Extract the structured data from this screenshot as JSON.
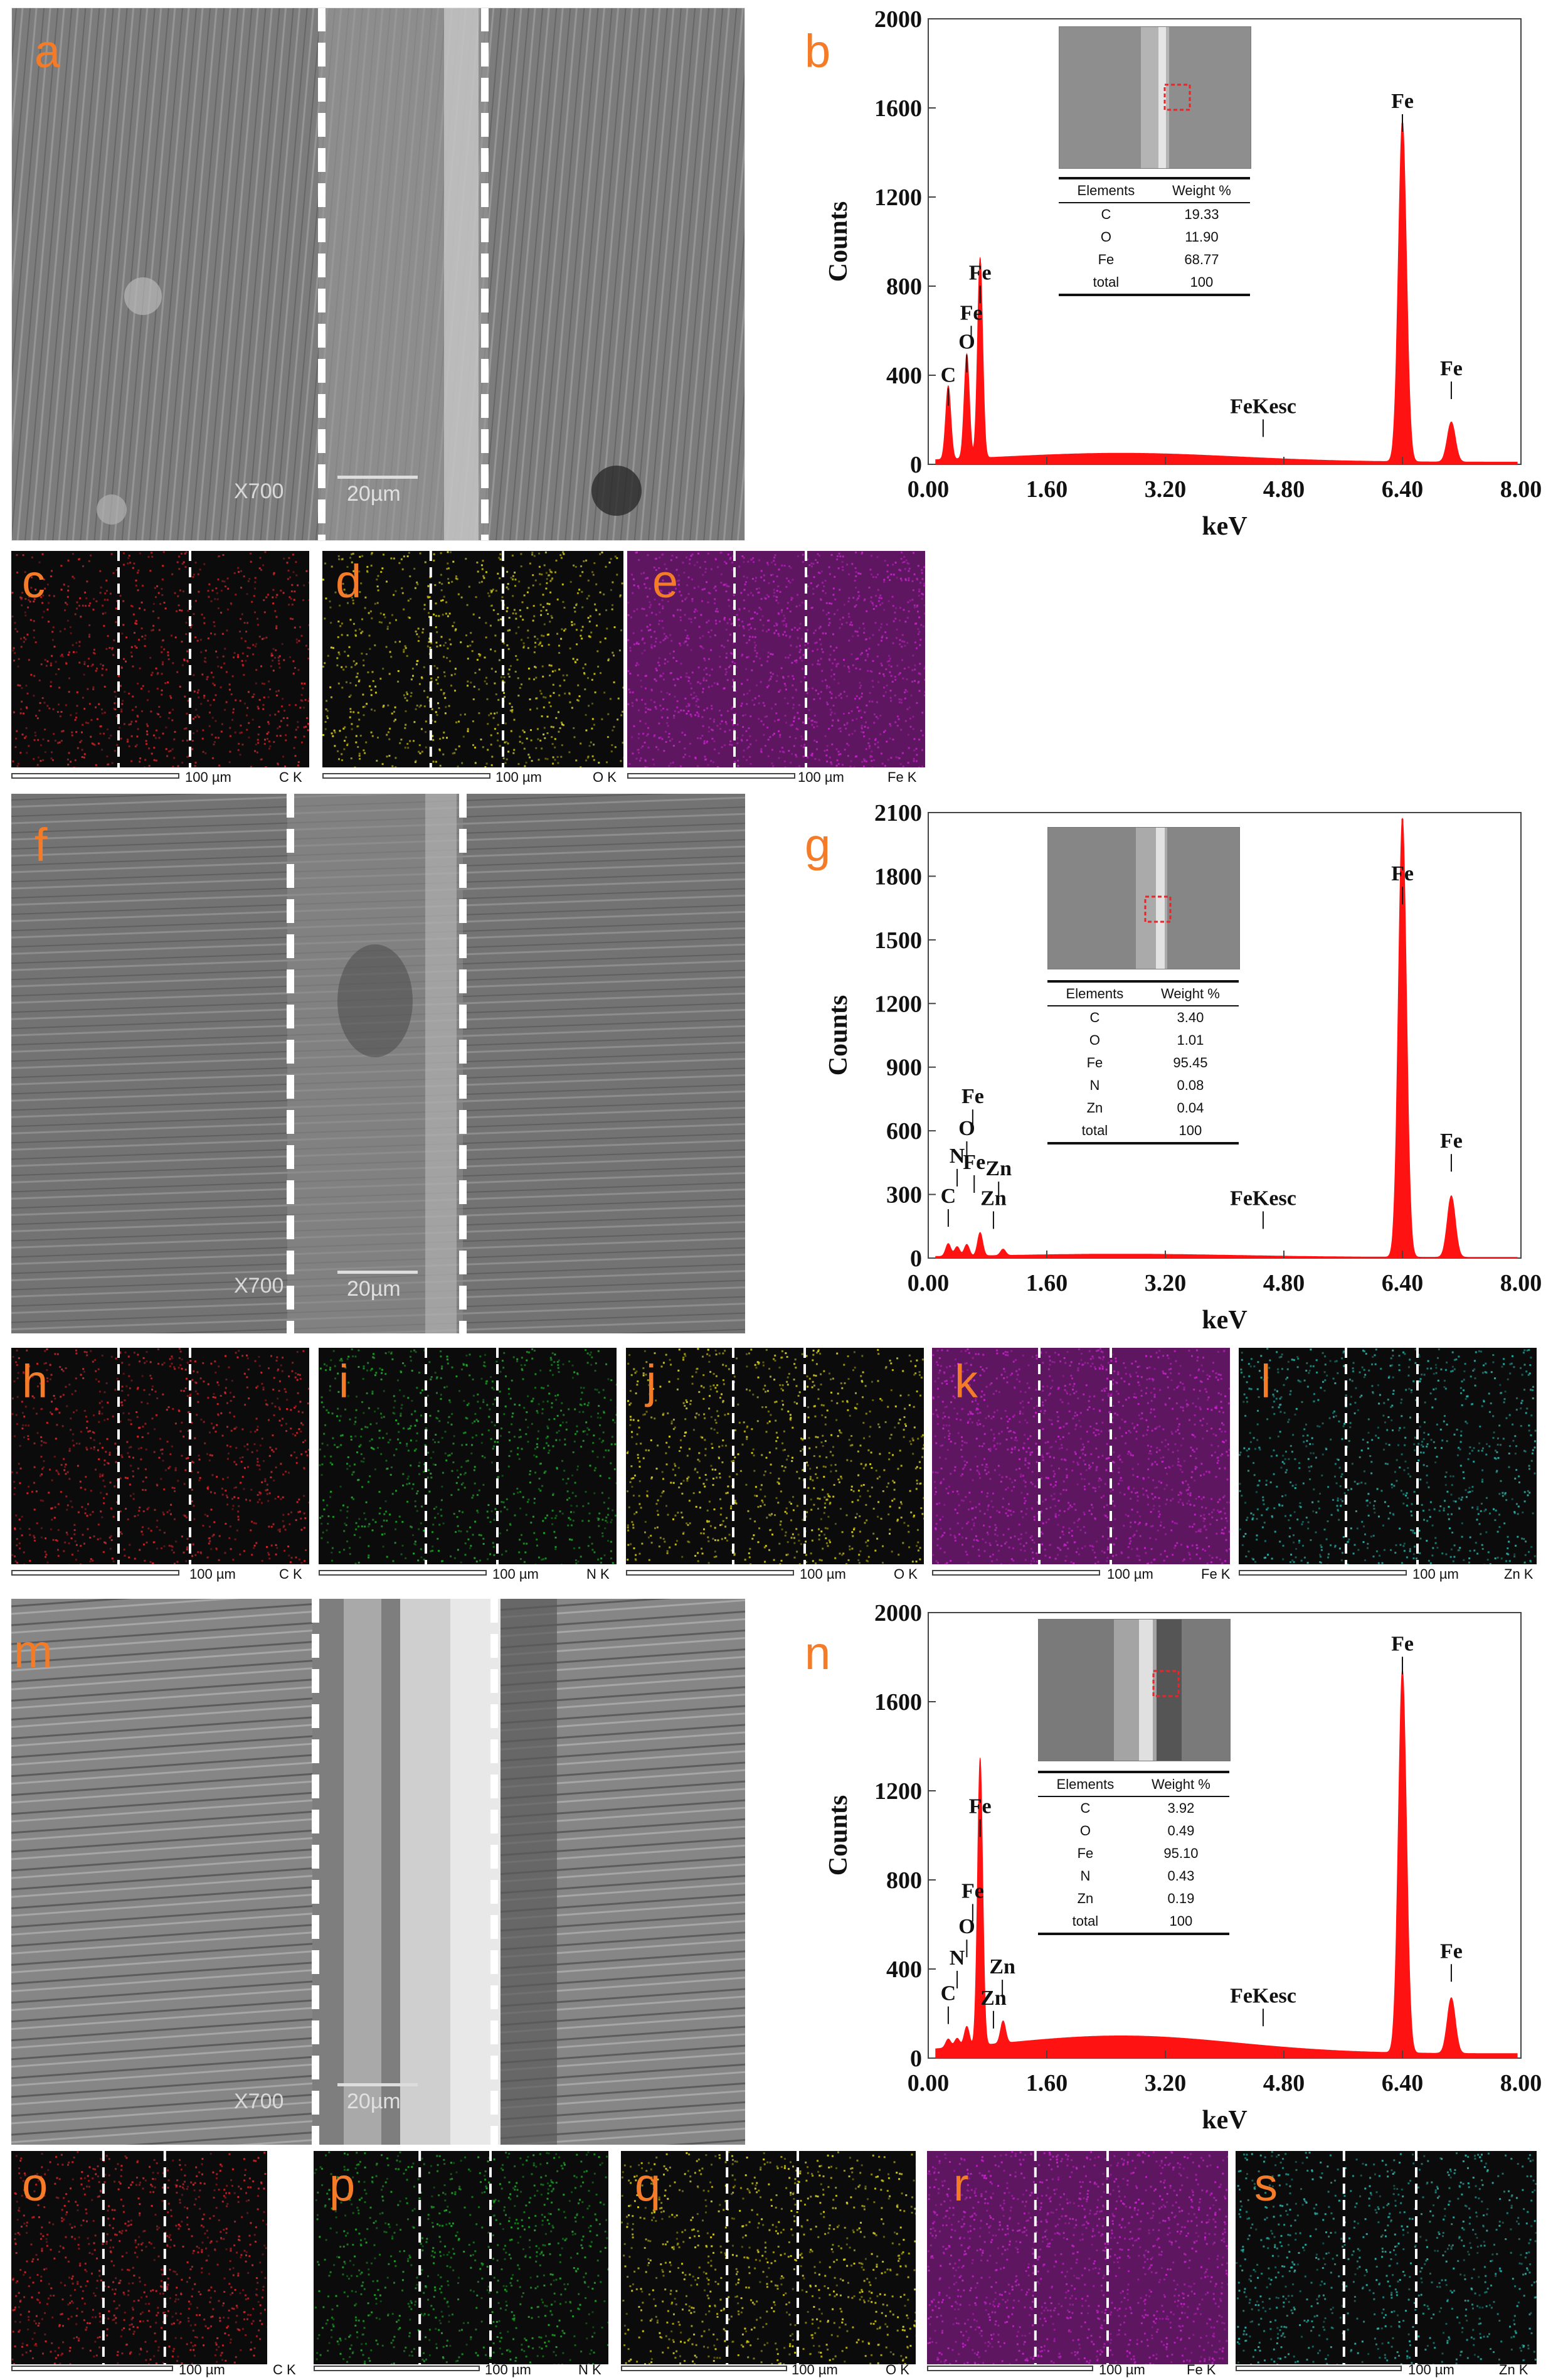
{
  "panels": {
    "a": "a",
    "b": "b",
    "c": "c",
    "d": "d",
    "e": "e",
    "f": "f",
    "g": "g",
    "h": "h",
    "i": "i",
    "j": "j",
    "k": "k",
    "l": "l",
    "m": "m",
    "n": "n",
    "o": "o",
    "p": "p",
    "q": "q",
    "r": "r",
    "s": "s"
  },
  "sem_labels": {
    "magnification": "X700",
    "scale": "20µm"
  },
  "map_scale": "100 µm",
  "maps": {
    "c": {
      "element": "C K",
      "color": "#d7262d"
    },
    "d": {
      "element": "O K",
      "color": "#d9d21c"
    },
    "e": {
      "element": "Fe K",
      "color": "#c424c8"
    },
    "h": {
      "element": "C K",
      "color": "#d7262d"
    },
    "i": {
      "element": "N K",
      "color": "#1fa82a"
    },
    "j": {
      "element": "O K",
      "color": "#d9d21c"
    },
    "k": {
      "element": "Fe K",
      "color": "#c424c8"
    },
    "l": {
      "element": "Zn K",
      "color": "#2bb3a8"
    },
    "o": {
      "element": "C K",
      "color": "#d7262d"
    },
    "p": {
      "element": "N K",
      "color": "#1fa82a"
    },
    "q": {
      "element": "O K",
      "color": "#d9d21c"
    },
    "r": {
      "element": "Fe K",
      "color": "#c424c8"
    },
    "s": {
      "element": "Zn K",
      "color": "#2bb3a8"
    }
  },
  "tables": {
    "b": {
      "headers": [
        "Elements",
        "Weight %"
      ],
      "rows": [
        [
          "C",
          "19.33"
        ],
        [
          "O",
          "11.90"
        ],
        [
          "Fe",
          "68.77"
        ],
        [
          "total",
          "100"
        ]
      ]
    },
    "g": {
      "headers": [
        "Elements",
        "Weight %"
      ],
      "rows": [
        [
          "C",
          "3.40"
        ],
        [
          "O",
          "1.01"
        ],
        [
          "Fe",
          "95.45"
        ],
        [
          "N",
          "0.08"
        ],
        [
          "Zn",
          "0.04"
        ],
        [
          "total",
          "100"
        ]
      ]
    },
    "n": {
      "headers": [
        "Elements",
        "Weight %"
      ],
      "rows": [
        [
          "C",
          "3.92"
        ],
        [
          "O",
          "0.49"
        ],
        [
          "Fe",
          "95.10"
        ],
        [
          "N",
          "0.43"
        ],
        [
          "Zn",
          "0.19"
        ],
        [
          "total",
          "100"
        ]
      ]
    }
  },
  "chart_data": [
    {
      "panel": "b",
      "type": "area",
      "xlabel": "keV",
      "ylabel": "Counts",
      "xlim": [
        0,
        8
      ],
      "ylim": [
        0,
        2000
      ],
      "xticks": [
        "0.00",
        "1.60",
        "3.20",
        "4.80",
        "6.40",
        "8.00"
      ],
      "yticks": [
        "0",
        "400",
        "800",
        "1200",
        "1600",
        "2000"
      ],
      "peaks": [
        {
          "x": 0.27,
          "y": 330
        },
        {
          "x": 0.52,
          "y": 470
        },
        {
          "x": 0.7,
          "y": 900
        },
        {
          "x": 6.4,
          "y": 1530
        },
        {
          "x": 7.06,
          "y": 180
        }
      ],
      "background": 40,
      "annotations": [
        {
          "text": "C",
          "x": 0.27,
          "y": 370
        },
        {
          "text": "O",
          "x": 0.52,
          "y": 520
        },
        {
          "text": "Fe",
          "x": 0.58,
          "y": 650
        },
        {
          "text": "Fe",
          "x": 0.7,
          "y": 830
        },
        {
          "text": "FeKesc",
          "x": 4.52,
          "y": 230
        },
        {
          "text": "Fe",
          "x": 6.4,
          "y": 1600
        },
        {
          "text": "Fe",
          "x": 7.06,
          "y": 400
        }
      ]
    },
    {
      "panel": "g",
      "type": "area",
      "xlabel": "keV",
      "ylabel": "Counts",
      "xlim": [
        0,
        8
      ],
      "ylim": [
        0,
        2100
      ],
      "xticks": [
        "0.00",
        "1.60",
        "3.20",
        "4.80",
        "6.40",
        "8.00"
      ],
      "yticks": [
        "0",
        "300",
        "600",
        "900",
        "1200",
        "1500",
        "1800",
        "2100"
      ],
      "peaks": [
        {
          "x": 0.27,
          "y": 60
        },
        {
          "x": 0.39,
          "y": 45
        },
        {
          "x": 0.52,
          "y": 55
        },
        {
          "x": 0.7,
          "y": 110
        },
        {
          "x": 1.01,
          "y": 30
        },
        {
          "x": 6.4,
          "y": 2070
        },
        {
          "x": 7.06,
          "y": 290
        }
      ],
      "background": 15,
      "annotations": [
        {
          "text": "C",
          "x": 0.27,
          "y": 260
        },
        {
          "text": "N",
          "x": 0.39,
          "y": 450
        },
        {
          "text": "O",
          "x": 0.52,
          "y": 580
        },
        {
          "text": "Fe",
          "x": 0.62,
          "y": 420
        },
        {
          "text": "Fe",
          "x": 0.6,
          "y": 730
        },
        {
          "text": "Zn",
          "x": 0.95,
          "y": 390
        },
        {
          "text": "Zn",
          "x": 0.88,
          "y": 250
        },
        {
          "text": "FeKesc",
          "x": 4.52,
          "y": 250
        },
        {
          "text": "Fe",
          "x": 6.4,
          "y": 1780
        },
        {
          "text": "Fe",
          "x": 7.06,
          "y": 520
        }
      ]
    },
    {
      "panel": "n",
      "type": "area",
      "xlabel": "keV",
      "ylabel": "Counts",
      "xlim": [
        0,
        8
      ],
      "ylim": [
        0,
        2000
      ],
      "xticks": [
        "0.00",
        "1.60",
        "3.20",
        "4.80",
        "6.40",
        "8.00"
      ],
      "yticks": [
        "0",
        "400",
        "800",
        "1200",
        "1600",
        "2000"
      ],
      "peaks": [
        {
          "x": 0.27,
          "y": 40
        },
        {
          "x": 0.39,
          "y": 40
        },
        {
          "x": 0.52,
          "y": 90
        },
        {
          "x": 0.7,
          "y": 1290
        },
        {
          "x": 1.01,
          "y": 100
        },
        {
          "x": 6.4,
          "y": 1720
        },
        {
          "x": 7.06,
          "y": 250
        }
      ],
      "background": 80,
      "annotations": [
        {
          "text": "C",
          "x": 0.27,
          "y": 260
        },
        {
          "text": "N",
          "x": 0.39,
          "y": 420
        },
        {
          "text": "O",
          "x": 0.52,
          "y": 560
        },
        {
          "text": "Fe",
          "x": 0.6,
          "y": 720
        },
        {
          "text": "Fe",
          "x": 0.7,
          "y": 1100
        },
        {
          "text": "Zn",
          "x": 1.0,
          "y": 380
        },
        {
          "text": "Zn",
          "x": 0.88,
          "y": 240
        },
        {
          "text": "FeKesc",
          "x": 4.52,
          "y": 250
        },
        {
          "text": "Fe",
          "x": 6.4,
          "y": 1830
        },
        {
          "text": "Fe",
          "x": 7.06,
          "y": 450
        }
      ]
    }
  ]
}
